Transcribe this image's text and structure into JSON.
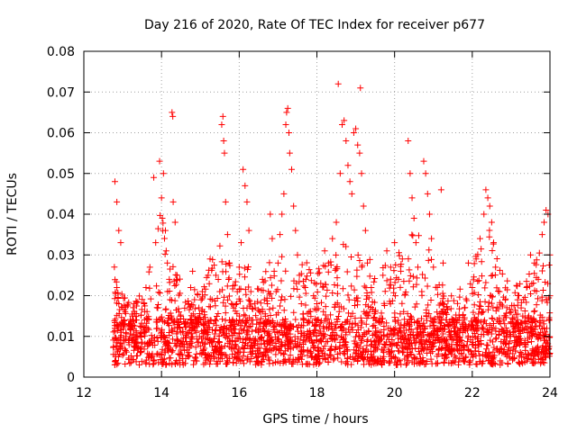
{
  "chart_data": {
    "type": "scatter",
    "title": "Day 216 of 2020, Rate Of TEC Index for receiver p677",
    "xlabel": "GPS time / hours",
    "ylabel": "ROTI / TECUs",
    "xlim": [
      12,
      24
    ],
    "ylim": [
      0,
      0.08
    ],
    "x_ticks": [
      {
        "value": 12,
        "label": "12"
      },
      {
        "value": 14,
        "label": "14"
      },
      {
        "value": 16,
        "label": "16"
      },
      {
        "value": 18,
        "label": "18"
      },
      {
        "value": 20,
        "label": "20"
      },
      {
        "value": 22,
        "label": "22"
      },
      {
        "value": 24,
        "label": "24"
      }
    ],
    "y_ticks": [
      {
        "value": 0,
        "label": "0"
      },
      {
        "value": 0.01,
        "label": "0.01"
      },
      {
        "value": 0.02,
        "label": "0.02"
      },
      {
        "value": 0.03,
        "label": "0.03"
      },
      {
        "value": 0.04,
        "label": "0.04"
      },
      {
        "value": 0.05,
        "label": "0.05"
      },
      {
        "value": 0.06,
        "label": "0.06"
      },
      {
        "value": 0.07,
        "label": "0.07"
      },
      {
        "value": 0.08,
        "label": "0.08"
      }
    ],
    "grid": true,
    "marker": "+",
    "series": [
      {
        "name": "ROTI",
        "color": "#ff0000",
        "points": [
          [
            12.8,
            0.048
          ],
          [
            12.85,
            0.043
          ],
          [
            12.9,
            0.036
          ],
          [
            12.95,
            0.033
          ],
          [
            12.85,
            0.022
          ],
          [
            12.9,
            0.018
          ],
          [
            12.8,
            0.012
          ],
          [
            12.85,
            0.009
          ],
          [
            12.9,
            0.007
          ],
          [
            12.95,
            0.011
          ],
          [
            13.05,
            0.013
          ],
          [
            13.15,
            0.009
          ],
          [
            13.25,
            0.015
          ],
          [
            13.35,
            0.011
          ],
          [
            13.45,
            0.007
          ],
          [
            13.55,
            0.018
          ],
          [
            13.6,
            0.022
          ],
          [
            13.65,
            0.012
          ],
          [
            13.7,
            0.027
          ],
          [
            13.75,
            0.009
          ],
          [
            13.8,
            0.049
          ],
          [
            13.85,
            0.033
          ],
          [
            13.9,
            0.012
          ],
          [
            13.95,
            0.053
          ],
          [
            14.0,
            0.044
          ],
          [
            14.02,
            0.039
          ],
          [
            14.05,
            0.05
          ],
          [
            14.1,
            0.036
          ],
          [
            14.12,
            0.031
          ],
          [
            14.15,
            0.028
          ],
          [
            14.2,
            0.024
          ],
          [
            14.22,
            0.019
          ],
          [
            14.25,
            0.015
          ],
          [
            14.27,
            0.065
          ],
          [
            14.29,
            0.064
          ],
          [
            14.3,
            0.043
          ],
          [
            14.35,
            0.038
          ],
          [
            14.4,
            0.025
          ],
          [
            14.45,
            0.016
          ],
          [
            14.5,
            0.011
          ],
          [
            14.55,
            0.008
          ],
          [
            14.6,
            0.013
          ],
          [
            14.7,
            0.018
          ],
          [
            14.75,
            0.022
          ],
          [
            14.8,
            0.026
          ],
          [
            14.85,
            0.019
          ],
          [
            14.9,
            0.011
          ],
          [
            15.0,
            0.014
          ],
          [
            15.05,
            0.021
          ],
          [
            15.1,
            0.016
          ],
          [
            15.15,
            0.011
          ],
          [
            15.2,
            0.025
          ],
          [
            15.25,
            0.029
          ],
          [
            15.3,
            0.019
          ],
          [
            15.4,
            0.025
          ],
          [
            15.5,
            0.021
          ],
          [
            15.55,
            0.062
          ],
          [
            15.58,
            0.064
          ],
          [
            15.6,
            0.058
          ],
          [
            15.62,
            0.055
          ],
          [
            15.65,
            0.043
          ],
          [
            15.7,
            0.035
          ],
          [
            15.75,
            0.028
          ],
          [
            15.8,
            0.018
          ],
          [
            15.85,
            0.012
          ],
          [
            15.9,
            0.009
          ],
          [
            15.95,
            0.021
          ],
          [
            16.0,
            0.027
          ],
          [
            16.05,
            0.033
          ],
          [
            16.1,
            0.051
          ],
          [
            16.15,
            0.047
          ],
          [
            16.2,
            0.043
          ],
          [
            16.25,
            0.036
          ],
          [
            16.3,
            0.021
          ],
          [
            16.35,
            0.014
          ],
          [
            16.4,
            0.009
          ],
          [
            16.5,
            0.011
          ],
          [
            16.55,
            0.016
          ],
          [
            16.6,
            0.024
          ],
          [
            16.65,
            0.019
          ],
          [
            16.7,
            0.013
          ],
          [
            16.75,
            0.021
          ],
          [
            16.8,
            0.04
          ],
          [
            16.85,
            0.034
          ],
          [
            16.9,
            0.026
          ],
          [
            16.95,
            0.021
          ],
          [
            17.0,
            0.028
          ],
          [
            17.05,
            0.035
          ],
          [
            17.1,
            0.04
          ],
          [
            17.15,
            0.045
          ],
          [
            17.2,
            0.062
          ],
          [
            17.22,
            0.065
          ],
          [
            17.25,
            0.066
          ],
          [
            17.28,
            0.06
          ],
          [
            17.3,
            0.055
          ],
          [
            17.35,
            0.051
          ],
          [
            17.4,
            0.042
          ],
          [
            17.45,
            0.036
          ],
          [
            17.5,
            0.03
          ],
          [
            17.55,
            0.025
          ],
          [
            17.6,
            0.018
          ],
          [
            17.65,
            0.014
          ],
          [
            17.7,
            0.022
          ],
          [
            17.8,
            0.016
          ],
          [
            17.9,
            0.011
          ],
          [
            18.0,
            0.018
          ],
          [
            18.1,
            0.023
          ],
          [
            18.2,
            0.031
          ],
          [
            18.3,
            0.028
          ],
          [
            18.4,
            0.034
          ],
          [
            18.5,
            0.038
          ],
          [
            18.55,
            0.072
          ],
          [
            18.6,
            0.05
          ],
          [
            18.65,
            0.062
          ],
          [
            18.7,
            0.063
          ],
          [
            18.75,
            0.058
          ],
          [
            18.8,
            0.052
          ],
          [
            18.85,
            0.048
          ],
          [
            18.9,
            0.045
          ],
          [
            18.95,
            0.06
          ],
          [
            19.0,
            0.061
          ],
          [
            19.05,
            0.057
          ],
          [
            19.1,
            0.055
          ],
          [
            19.12,
            0.071
          ],
          [
            19.15,
            0.05
          ],
          [
            19.2,
            0.042
          ],
          [
            19.25,
            0.036
          ],
          [
            19.3,
            0.028
          ],
          [
            19.4,
            0.022
          ],
          [
            19.5,
            0.016
          ],
          [
            19.6,
            0.011
          ],
          [
            19.7,
            0.025
          ],
          [
            19.8,
            0.031
          ],
          [
            19.9,
            0.027
          ],
          [
            20.0,
            0.033
          ],
          [
            20.1,
            0.024
          ],
          [
            20.2,
            0.029
          ],
          [
            20.35,
            0.058
          ],
          [
            20.4,
            0.05
          ],
          [
            20.45,
            0.044
          ],
          [
            20.5,
            0.039
          ],
          [
            20.55,
            0.033
          ],
          [
            20.6,
            0.027
          ],
          [
            20.7,
            0.021
          ],
          [
            20.75,
            0.053
          ],
          [
            20.8,
            0.05
          ],
          [
            20.85,
            0.045
          ],
          [
            20.9,
            0.04
          ],
          [
            20.95,
            0.034
          ],
          [
            21.0,
            0.027
          ],
          [
            21.1,
            0.022
          ],
          [
            21.2,
            0.046
          ],
          [
            21.25,
            0.028
          ],
          [
            21.3,
            0.016
          ],
          [
            21.4,
            0.011
          ],
          [
            21.5,
            0.014
          ],
          [
            21.6,
            0.009
          ],
          [
            21.7,
            0.012
          ],
          [
            21.8,
            0.017
          ],
          [
            21.9,
            0.028
          ],
          [
            22.0,
            0.022
          ],
          [
            22.1,
            0.029
          ],
          [
            22.2,
            0.034
          ],
          [
            22.3,
            0.04
          ],
          [
            22.35,
            0.046
          ],
          [
            22.4,
            0.044
          ],
          [
            22.45,
            0.042
          ],
          [
            22.5,
            0.038
          ],
          [
            22.55,
            0.033
          ],
          [
            22.6,
            0.027
          ],
          [
            22.7,
            0.021
          ],
          [
            22.8,
            0.014
          ],
          [
            22.9,
            0.011
          ],
          [
            23.0,
            0.016
          ],
          [
            23.1,
            0.012
          ],
          [
            23.2,
            0.02
          ],
          [
            23.3,
            0.015
          ],
          [
            23.4,
            0.022
          ],
          [
            23.5,
            0.03
          ],
          [
            23.6,
            0.028
          ],
          [
            23.7,
            0.024
          ],
          [
            23.8,
            0.035
          ],
          [
            23.85,
            0.038
          ],
          [
            23.9,
            0.041
          ],
          [
            23.95,
            0.04
          ],
          [
            24.0,
            0.03
          ]
        ],
        "dense_floor": {
          "x_start": 12.75,
          "x_end": 24.0,
          "floor_min": 0.003,
          "floor_max": 0.014,
          "upper_envelope": [
            [
              12.8,
              0.026
            ],
            [
              13.0,
              0.02
            ],
            [
              13.3,
              0.018
            ],
            [
              13.6,
              0.024
            ],
            [
              13.8,
              0.032
            ],
            [
              14.0,
              0.042
            ],
            [
              14.2,
              0.034
            ],
            [
              14.4,
              0.028
            ],
            [
              14.6,
              0.02
            ],
            [
              14.9,
              0.022
            ],
            [
              15.2,
              0.028
            ],
            [
              15.6,
              0.034
            ],
            [
              15.8,
              0.026
            ],
            [
              16.1,
              0.03
            ],
            [
              16.5,
              0.022
            ],
            [
              16.8,
              0.03
            ],
            [
              17.0,
              0.034
            ],
            [
              17.3,
              0.04
            ],
            [
              17.6,
              0.03
            ],
            [
              17.9,
              0.026
            ],
            [
              18.2,
              0.03
            ],
            [
              18.5,
              0.034
            ],
            [
              18.9,
              0.036
            ],
            [
              19.2,
              0.032
            ],
            [
              19.6,
              0.026
            ],
            [
              19.9,
              0.03
            ],
            [
              20.2,
              0.032
            ],
            [
              20.5,
              0.036
            ],
            [
              20.8,
              0.034
            ],
            [
              21.1,
              0.026
            ],
            [
              21.4,
              0.02
            ],
            [
              21.8,
              0.024
            ],
            [
              22.1,
              0.03
            ],
            [
              22.4,
              0.038
            ],
            [
              22.7,
              0.03
            ],
            [
              23.0,
              0.022
            ],
            [
              23.3,
              0.024
            ],
            [
              23.6,
              0.028
            ],
            [
              23.9,
              0.034
            ],
            [
              24.0,
              0.028
            ]
          ]
        }
      }
    ]
  }
}
